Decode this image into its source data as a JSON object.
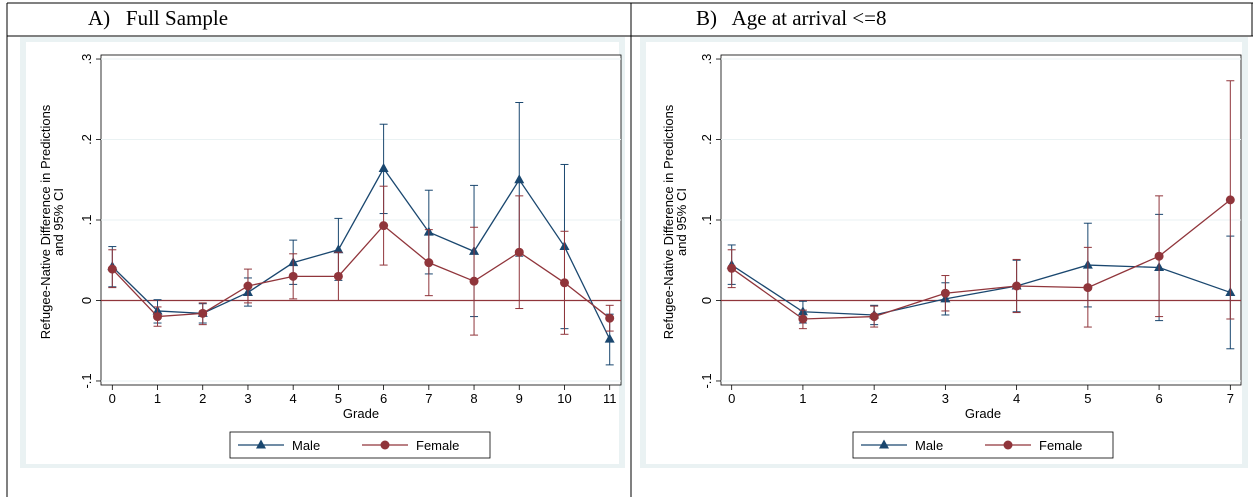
{
  "panels": [
    {
      "label": "A)",
      "title": "Full Sample"
    },
    {
      "label": "B)",
      "title": "Age at arrival <=8"
    }
  ],
  "colors": {
    "male": "#1a476f",
    "female": "#90353b",
    "zero_line": "#90353b",
    "axis": "#000000",
    "panel_border": "#000000"
  },
  "icons": {
    "male_marker": "triangle",
    "female_marker": "circle"
  },
  "chart_data": [
    {
      "type": "line",
      "ylabel_line1": "Refugee-Native Difference in Predictions",
      "ylabel_line2": "and 95% CI",
      "xlabel": "Grade",
      "x": [
        0,
        1,
        2,
        3,
        4,
        5,
        6,
        7,
        8,
        9,
        10,
        11
      ],
      "xticklabels": [
        "0",
        "1",
        "2",
        "3",
        "4",
        "5",
        "6",
        "7",
        "8",
        "9",
        "10",
        "11"
      ],
      "xlim": [
        -0.25,
        11.25
      ],
      "ylim": [
        -0.105,
        0.305
      ],
      "yticks": [
        -0.1,
        0,
        0.1,
        0.2,
        0.3
      ],
      "yticklabels": [
        "-.1",
        "0",
        ".1",
        ".2",
        ".3"
      ],
      "reference_line": 0,
      "grid": true,
      "legend": "bottom",
      "series": [
        {
          "name": "Male",
          "values": [
            0.042,
            -0.013,
            -0.016,
            0.01,
            0.047,
            0.063,
            0.164,
            0.085,
            0.061,
            0.15,
            0.067,
            -0.048
          ],
          "lower": [
            0.017,
            -0.028,
            -0.028,
            -0.007,
            0.02,
            0.025,
            0.108,
            0.033,
            -0.02,
            0.055,
            -0.035,
            -0.08
          ],
          "upper": [
            0.067,
            0.001,
            -0.004,
            0.028,
            0.075,
            0.102,
            0.219,
            0.137,
            0.143,
            0.246,
            0.169,
            -0.017
          ]
        },
        {
          "name": "Female",
          "values": [
            0.039,
            -0.02,
            -0.016,
            0.018,
            0.03,
            0.03,
            0.093,
            0.047,
            0.024,
            0.06,
            0.022,
            -0.022
          ],
          "lower": [
            0.016,
            -0.032,
            -0.03,
            -0.003,
            0.002,
            0.0,
            0.044,
            0.006,
            -0.043,
            -0.01,
            -0.042,
            -0.038
          ],
          "upper": [
            0.063,
            -0.008,
            -0.003,
            0.039,
            0.058,
            0.06,
            0.142,
            0.088,
            0.091,
            0.13,
            0.086,
            -0.006
          ]
        }
      ]
    },
    {
      "type": "line",
      "ylabel_line1": "Refugee-Native Difference in Predictions",
      "ylabel_line2": "and 95% CI",
      "xlabel": "Grade",
      "x": [
        0,
        1,
        2,
        3,
        4,
        5,
        6,
        7
      ],
      "xticklabels": [
        "0",
        "1",
        "2",
        "3",
        "4",
        "5",
        "6",
        "7"
      ],
      "xlim": [
        -0.15,
        7.15
      ],
      "ylim": [
        -0.105,
        0.305
      ],
      "yticks": [
        -0.1,
        0,
        0.1,
        0.2,
        0.3
      ],
      "yticklabels": [
        "-.1",
        "0",
        ".1",
        ".2",
        ".3"
      ],
      "reference_line": 0,
      "grid": true,
      "legend": "bottom",
      "series": [
        {
          "name": "Male",
          "values": [
            0.044,
            -0.014,
            -0.018,
            0.002,
            0.018,
            0.044,
            0.041,
            0.01
          ],
          "lower": [
            0.02,
            -0.028,
            -0.03,
            -0.018,
            -0.014,
            -0.008,
            -0.025,
            -0.06
          ],
          "upper": [
            0.069,
            -0.001,
            -0.006,
            0.022,
            0.05,
            0.096,
            0.107,
            0.08
          ]
        },
        {
          "name": "Female",
          "values": [
            0.04,
            -0.023,
            -0.02,
            0.009,
            0.018,
            0.016,
            0.055,
            0.125
          ],
          "lower": [
            0.016,
            -0.035,
            -0.033,
            -0.013,
            -0.015,
            -0.033,
            -0.02,
            -0.023
          ],
          "upper": [
            0.063,
            -0.012,
            -0.007,
            0.031,
            0.051,
            0.066,
            0.13,
            0.273
          ]
        }
      ]
    }
  ]
}
